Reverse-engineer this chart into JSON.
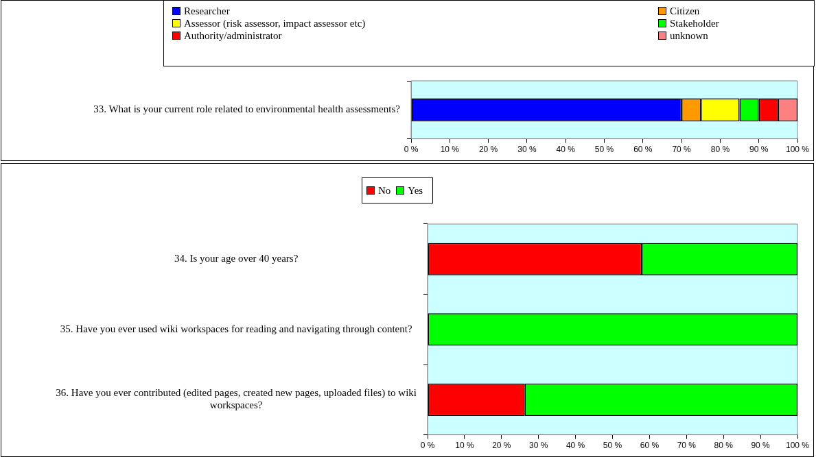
{
  "chart_data": [
    {
      "type": "bar",
      "orientation": "horizontal",
      "stacked": true,
      "legend": "top",
      "categories": [
        "33. What is your current role related to environmental health assessments?"
      ],
      "series": [
        {
          "name": "Researcher",
          "color": "#0000ff",
          "values": [
            70
          ]
        },
        {
          "name": "Citizen",
          "color": "#ff9900",
          "values": [
            5
          ]
        },
        {
          "name": "Assessor (risk assessor, impact assessor etc)",
          "color": "#ffff00",
          "values": [
            10
          ]
        },
        {
          "name": "Stakeholder",
          "color": "#00ff00",
          "values": [
            5
          ]
        },
        {
          "name": "Authority/administrator",
          "color": "#ff0000",
          "values": [
            5
          ]
        },
        {
          "name": "unknown",
          "color": "#ff8080",
          "values": [
            5
          ]
        }
      ],
      "xlim": [
        0,
        100
      ],
      "xticks": [
        {
          "value": 0,
          "label": "0 %"
        },
        {
          "value": 10,
          "label": "10 %"
        },
        {
          "value": 20,
          "label": "20 %"
        },
        {
          "value": 30,
          "label": "30 %"
        },
        {
          "value": 40,
          "label": "40 %"
        },
        {
          "value": 50,
          "label": "50 %"
        },
        {
          "value": 60,
          "label": "60 %"
        },
        {
          "value": 70,
          "label": "70 %"
        },
        {
          "value": 80,
          "label": "80 %"
        },
        {
          "value": 90,
          "label": "90 %"
        },
        {
          "value": 100,
          "label": "100 %"
        }
      ]
    },
    {
      "type": "bar",
      "orientation": "horizontal",
      "stacked": true,
      "legend": "top",
      "categories": [
        "34. Is your age over 40 years?",
        "35. Have you ever used wiki workspaces for reading and navigating through content?",
        "36. Have you ever contributed (edited pages, created new pages, uploaded files) to wiki workspaces?"
      ],
      "series": [
        {
          "name": "No",
          "color": "#ff0000",
          "values": [
            57.9,
            0,
            26.3
          ]
        },
        {
          "name": "Yes",
          "color": "#00ff00",
          "values": [
            42.1,
            100,
            73.7
          ]
        }
      ],
      "xlim": [
        0,
        100
      ],
      "xticks": [
        {
          "value": 0,
          "label": "0 %"
        },
        {
          "value": 10,
          "label": "10 %"
        },
        {
          "value": 20,
          "label": "20 %"
        },
        {
          "value": 30,
          "label": "30 %"
        },
        {
          "value": 40,
          "label": "40 %"
        },
        {
          "value": 50,
          "label": "50 %"
        },
        {
          "value": 60,
          "label": "60 %"
        },
        {
          "value": 70,
          "label": "70 %"
        },
        {
          "value": 80,
          "label": "80 %"
        },
        {
          "value": 90,
          "label": "90 %"
        },
        {
          "value": 100,
          "label": "100 %"
        }
      ]
    }
  ]
}
